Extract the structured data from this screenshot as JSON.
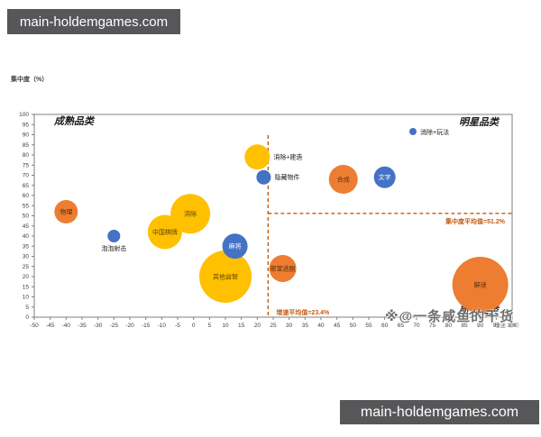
{
  "watermark_top": {
    "text": "main-holdemgames.com"
  },
  "watermark_bottom": {
    "text": "main-holdemgames.com"
  },
  "overlay_watermark": "※@一条咸鱼的干货",
  "chart_data": {
    "type": "scatter",
    "subtype": "bubble-quadrant",
    "x_axis": {
      "label": "增速（%）",
      "min": -50,
      "max": 100,
      "tick_step": 5
    },
    "y_axis": {
      "label": "集中度（%）",
      "min": 0,
      "max": 100,
      "tick_step": 5
    },
    "quadrants": {
      "top_left": "成熟品类",
      "top_right": "明星品类",
      "bottom_right": "新兴品类"
    },
    "legend": {
      "label": "消除+玩法",
      "color": "#4472C4",
      "position": "top-right"
    },
    "avg_lines": {
      "x": {
        "value": 23.4,
        "label": "增速平均值=23.4%"
      },
      "y": {
        "value": 51.2,
        "label": "集中度平均值=51.2%"
      }
    },
    "colors": {
      "yellow": "#FFC000",
      "orange": "#ED7D31",
      "blue": "#4472C4",
      "avg_line": "#C55A11",
      "axis": "#7f7f7f",
      "tick_text": "#404040",
      "quadrant_text": "#1a1a1a"
    },
    "grid": false,
    "bubbles": [
      {
        "label": "消除",
        "x": -1,
        "y": 51,
        "size": 22,
        "color": "yellow",
        "label_pos": "inside"
      },
      {
        "label": "中国棋牌",
        "x": -9,
        "y": 42,
        "size": 19,
        "color": "yellow",
        "label_pos": "inside"
      },
      {
        "label": "其他益智",
        "x": 10,
        "y": 20,
        "size": 29,
        "color": "yellow",
        "label_pos": "inside"
      },
      {
        "label": "麻将",
        "x": 13,
        "y": 35,
        "size": 14,
        "color": "blue",
        "label_pos": "inside"
      },
      {
        "label": "物理",
        "x": -40,
        "y": 52,
        "size": 13,
        "color": "orange",
        "label_pos": "inside"
      },
      {
        "label": "泡泡射击",
        "x": -25,
        "y": 40,
        "size": 7,
        "color": "blue",
        "label_pos": "below"
      },
      {
        "label": "消除+建造",
        "x": 20,
        "y": 79,
        "size": 14,
        "color": "yellow",
        "label_pos": "right"
      },
      {
        "label": "隐藏物件",
        "x": 22,
        "y": 69,
        "size": 8,
        "color": "blue",
        "label_pos": "right"
      },
      {
        "label": "密室逃脱",
        "x": 28,
        "y": 24,
        "size": 15,
        "color": "orange",
        "label_pos": "inside"
      },
      {
        "label": "合成",
        "x": 47,
        "y": 68,
        "size": 16,
        "color": "orange",
        "label_pos": "inside"
      },
      {
        "label": "文字",
        "x": 60,
        "y": 69,
        "size": 12,
        "color": "blue",
        "label_pos": "inside"
      },
      {
        "label": "解谜",
        "x": 90,
        "y": 16,
        "size": 31,
        "color": "orange",
        "label_pos": "inside"
      }
    ]
  }
}
